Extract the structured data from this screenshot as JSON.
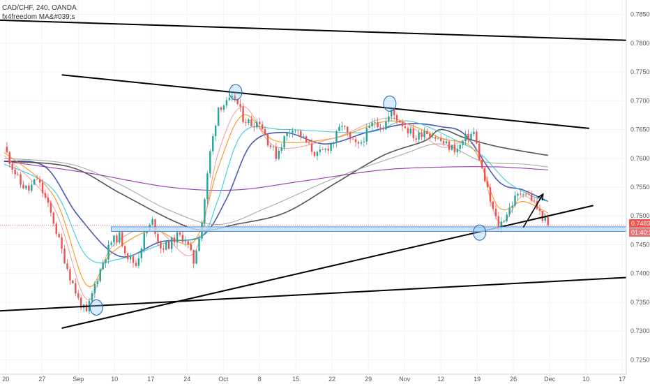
{
  "header": {
    "symbol_line": "CAD/CHF, 240, OANDA",
    "indicator_line": "fx4freedom MA&#039;s"
  },
  "price_badges": {
    "current_price": "0.74839",
    "countdown": "01:40:31",
    "price_color": "#ef5350",
    "countdown_color": "#e57373"
  },
  "chart_data": {
    "type": "candlestick",
    "title": "",
    "xlabel": "",
    "ylabel": "",
    "ylim": [
      0.7225,
      0.7875
    ],
    "y_ticks": [
      0.725,
      0.73,
      0.735,
      0.74,
      0.745,
      0.75,
      0.755,
      0.76,
      0.765,
      0.77,
      0.775,
      0.78,
      0.785
    ],
    "y_tick_labels": [
      "0.72500",
      "0.73000",
      "0.73500",
      "0.74000",
      "0.74500",
      "0.75000",
      "0.75500",
      "0.76000",
      "0.76500",
      "0.77000",
      "0.77500",
      "0.78000",
      "0.78500"
    ],
    "x_tick_labels": [
      "20",
      "27",
      "Sep",
      "10",
      "17",
      "24",
      "Oct",
      "8",
      "15",
      "22",
      "29",
      "Nov",
      "12",
      "19",
      "26",
      "Dec",
      "10",
      "17"
    ],
    "grid": true,
    "up_color": "#26a69a",
    "down_color": "#ef5350",
    "close_path": [
      [
        0,
        0.762
      ],
      [
        1,
        0.7585
      ],
      [
        2,
        0.7555
      ],
      [
        3,
        0.7545
      ],
      [
        4,
        0.7565
      ],
      [
        5,
        0.753
      ],
      [
        6,
        0.749
      ],
      [
        7,
        0.744
      ],
      [
        8,
        0.7395
      ],
      [
        9,
        0.7355
      ],
      [
        10,
        0.733
      ],
      [
        11,
        0.738
      ],
      [
        12,
        0.742
      ],
      [
        13,
        0.7455
      ],
      [
        14,
        0.7465
      ],
      [
        15,
        0.743
      ],
      [
        16,
        0.7415
      ],
      [
        17,
        0.7465
      ],
      [
        18,
        0.749
      ],
      [
        19,
        0.7445
      ],
      [
        20,
        0.745
      ],
      [
        21,
        0.7465
      ],
      [
        22,
        0.746
      ],
      [
        23,
        0.742
      ],
      [
        24,
        0.749
      ],
      [
        25,
        0.761
      ],
      [
        26,
        0.769
      ],
      [
        27,
        0.7695
      ],
      [
        28,
        0.7705
      ],
      [
        29,
        0.767
      ],
      [
        30,
        0.766
      ],
      [
        31,
        0.7665
      ],
      [
        32,
        0.763
      ],
      [
        33,
        0.7605
      ],
      [
        34,
        0.7635
      ],
      [
        35,
        0.7655
      ],
      [
        36,
        0.764
      ],
      [
        37,
        0.762
      ],
      [
        38,
        0.7605
      ],
      [
        39,
        0.7615
      ],
      [
        40,
        0.763
      ],
      [
        41,
        0.766
      ],
      [
        42,
        0.763
      ],
      [
        43,
        0.762
      ],
      [
        44,
        0.7645
      ],
      [
        45,
        0.7665
      ],
      [
        46,
        0.7655
      ],
      [
        47,
        0.768
      ],
      [
        48,
        0.7665
      ],
      [
        49,
        0.765
      ],
      [
        50,
        0.7635
      ],
      [
        51,
        0.765
      ],
      [
        52,
        0.764
      ],
      [
        53,
        0.763
      ],
      [
        54,
        0.762
      ],
      [
        55,
        0.7615
      ],
      [
        56,
        0.7635
      ],
      [
        57,
        0.7645
      ],
      [
        58,
        0.758
      ],
      [
        59,
        0.7525
      ],
      [
        60,
        0.748
      ],
      [
        61,
        0.7505
      ],
      [
        62,
        0.753
      ],
      [
        63,
        0.7545
      ],
      [
        64,
        0.753
      ],
      [
        65,
        0.7505
      ],
      [
        66,
        0.74839
      ]
    ],
    "series": [
      {
        "name": "",
        "color": "#3949ab",
        "points": [
          [
            0,
            0.7595
          ],
          [
            5,
            0.7585
          ],
          [
            9,
            0.75
          ],
          [
            14,
            0.743
          ],
          [
            19,
            0.7455
          ],
          [
            24,
            0.7465
          ],
          [
            27,
            0.753
          ],
          [
            30,
            0.7625
          ],
          [
            34,
            0.7645
          ],
          [
            39,
            0.7625
          ],
          [
            44,
            0.7645
          ],
          [
            49,
            0.766
          ],
          [
            53,
            0.7655
          ],
          [
            56,
            0.764
          ],
          [
            60,
            0.756
          ],
          [
            63,
            0.7545
          ],
          [
            66,
            0.7525
          ]
        ]
      },
      {
        "name": "",
        "color": "#424242",
        "points": [
          [
            0,
            0.7595
          ],
          [
            8,
            0.7585
          ],
          [
            14,
            0.754
          ],
          [
            20,
            0.7495
          ],
          [
            24,
            0.7475
          ],
          [
            28,
            0.7485
          ],
          [
            34,
            0.7505
          ],
          [
            40,
            0.7555
          ],
          [
            46,
            0.7605
          ],
          [
            51,
            0.763
          ],
          [
            53,
            0.765
          ],
          [
            56,
            0.7635
          ],
          [
            60,
            0.762
          ],
          [
            66,
            0.7605
          ]
        ]
      },
      {
        "name": "",
        "color": "#9e9e9e",
        "points": [
          [
            0,
            0.76
          ],
          [
            8,
            0.759
          ],
          [
            14,
            0.7555
          ],
          [
            20,
            0.751
          ],
          [
            26,
            0.7485
          ],
          [
            32,
            0.7515
          ],
          [
            40,
            0.7565
          ],
          [
            48,
            0.7605
          ],
          [
            53,
            0.7625
          ],
          [
            58,
            0.7595
          ],
          [
            63,
            0.759
          ],
          [
            66,
            0.7585
          ]
        ]
      },
      {
        "name": "",
        "color": "#8e24aa",
        "points": [
          [
            0,
            0.7595
          ],
          [
            10,
            0.7575
          ],
          [
            20,
            0.755
          ],
          [
            28,
            0.7545
          ],
          [
            36,
            0.756
          ],
          [
            46,
            0.758
          ],
          [
            54,
            0.7585
          ],
          [
            60,
            0.7585
          ],
          [
            66,
            0.758
          ]
        ]
      },
      {
        "name": "",
        "color": "#26c6da",
        "points": [
          [
            0,
            0.759
          ],
          [
            6,
            0.7545
          ],
          [
            10,
            0.743
          ],
          [
            14,
            0.7425
          ],
          [
            20,
            0.7455
          ],
          [
            24,
            0.7465
          ],
          [
            26,
            0.753
          ],
          [
            29,
            0.7645
          ],
          [
            34,
            0.765
          ],
          [
            44,
            0.7645
          ],
          [
            49,
            0.7665
          ],
          [
            55,
            0.763
          ],
          [
            58,
            0.7605
          ],
          [
            61,
            0.756
          ],
          [
            64,
            0.7535
          ],
          [
            66,
            0.7525
          ]
        ]
      },
      {
        "name": "",
        "color": "#fb8c00",
        "points": [
          [
            0,
            0.761
          ],
          [
            6,
            0.7535
          ],
          [
            10,
            0.738
          ],
          [
            13,
            0.7435
          ],
          [
            18,
            0.7475
          ],
          [
            23,
            0.7455
          ],
          [
            26,
            0.7585
          ],
          [
            29,
            0.7675
          ],
          [
            33,
            0.763
          ],
          [
            40,
            0.7635
          ],
          [
            47,
            0.7665
          ],
          [
            53,
            0.7635
          ],
          [
            57,
            0.7615
          ],
          [
            60,
            0.7515
          ],
          [
            63,
            0.7525
          ],
          [
            66,
            0.7505
          ]
        ]
      },
      {
        "name": "",
        "color": "#ef9a9a",
        "points": [
          [
            0,
            0.7605
          ],
          [
            6,
            0.7515
          ],
          [
            10,
            0.7355
          ],
          [
            13,
            0.7445
          ],
          [
            18,
            0.748
          ],
          [
            23,
            0.7435
          ],
          [
            26,
            0.761
          ],
          [
            29,
            0.769
          ],
          [
            33,
            0.762
          ],
          [
            40,
            0.7635
          ],
          [
            47,
            0.767
          ],
          [
            53,
            0.762
          ],
          [
            57,
            0.7625
          ],
          [
            60,
            0.749
          ],
          [
            63,
            0.7535
          ],
          [
            66,
            0.7495
          ]
        ]
      }
    ],
    "annotations": [
      {
        "type": "line",
        "from": [
          -0.5,
          0.784
        ],
        "to": [
          75.5,
          0.7805
        ]
      },
      {
        "type": "line",
        "from": [
          7,
          0.7745
        ],
        "to": [
          71,
          0.7652
        ]
      },
      {
        "type": "line",
        "from": [
          -0.5,
          0.7335
        ],
        "to": [
          75.5,
          0.7393
        ]
      },
      {
        "type": "line",
        "from": [
          7,
          0.7305
        ],
        "to": [
          71.5,
          0.7518
        ]
      },
      {
        "type": "zone",
        "from": [
          13,
          0.7481
        ],
        "to": [
          75.5,
          0.7473
        ]
      },
      {
        "type": "circle",
        "at": [
          11.2,
          0.7341
        ]
      },
      {
        "type": "circle",
        "at": [
          28.1,
          0.7715
        ]
      },
      {
        "type": "circle",
        "at": [
          46.8,
          0.7695
        ]
      },
      {
        "type": "circle",
        "at": [
          57.7,
          0.7471
        ]
      },
      {
        "type": "arrow",
        "from": [
          63,
          0.748
        ],
        "to": [
          65.4,
          0.7538
        ]
      }
    ]
  }
}
